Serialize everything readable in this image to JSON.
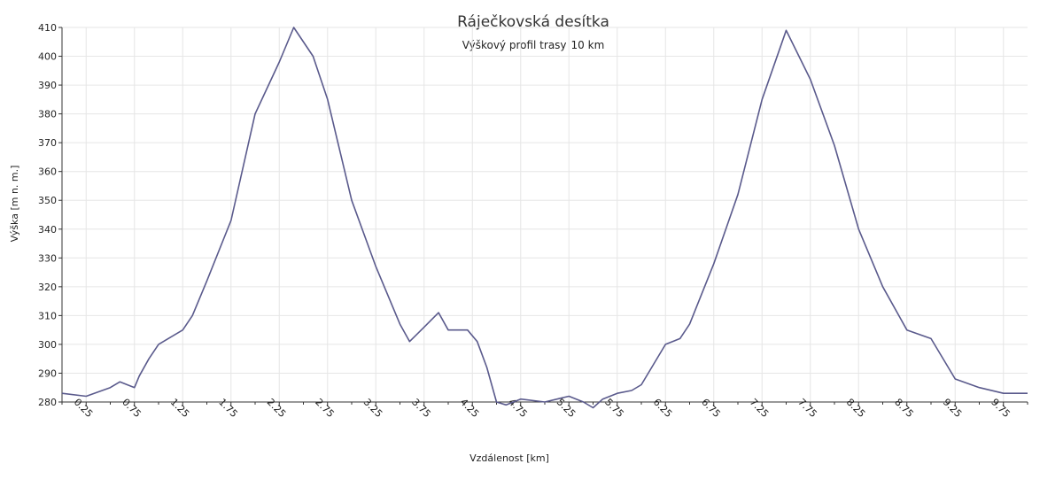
{
  "chart_data": {
    "type": "line",
    "title": "Ráječkovská desítka",
    "subtitle": "Výškový profil trasy",
    "subtitle_value": "10 km",
    "xlabel": "Vzdálenost [km]",
    "ylabel": "Výška [m n. m.]",
    "xlim": [
      0,
      10
    ],
    "ylim": [
      280,
      410
    ],
    "grid": true,
    "legend": "none",
    "x_ticks": [
      "0.25",
      "0.75",
      "1.25",
      "1.75",
      "2.25",
      "2.75",
      "3.25",
      "3.75",
      "4.25",
      "4.75",
      "5.25",
      "5.75",
      "6.25",
      "6.75",
      "7.25",
      "7.75",
      "8.25",
      "8.75",
      "9.25",
      "9.75"
    ],
    "y_ticks": [
      "410",
      "400",
      "390",
      "380",
      "370",
      "360",
      "350",
      "340",
      "330",
      "320",
      "310",
      "300",
      "290",
      "280"
    ],
    "line_color": "#5a5a8c",
    "series": [
      {
        "x": [
          0.0,
          0.25,
          0.5,
          0.6,
          0.75,
          0.8,
          0.9,
          1.0,
          1.1,
          1.25,
          1.35,
          1.5,
          1.75,
          2.0,
          2.25,
          2.4,
          2.6,
          2.75,
          3.0,
          3.25,
          3.5,
          3.6,
          3.75,
          3.9,
          4.0,
          4.2,
          4.3,
          4.4,
          4.5,
          4.6,
          4.75,
          5.0,
          5.25,
          5.4,
          5.5,
          5.6,
          5.75,
          5.9,
          6.0,
          6.25,
          6.4,
          6.5,
          6.75,
          7.0,
          7.25,
          7.5,
          7.75,
          8.0,
          8.25,
          8.5,
          8.75,
          9.0,
          9.25,
          9.5,
          9.75,
          10.0
        ],
        "values": [
          283,
          282,
          285,
          287,
          285,
          289,
          295,
          300,
          302,
          305,
          310,
          322,
          343,
          380,
          398,
          410,
          400,
          385,
          350,
          327,
          307,
          301,
          306,
          311,
          305,
          305,
          301,
          292,
          280,
          279,
          281,
          280,
          282,
          280,
          278,
          281,
          283,
          284,
          286,
          300,
          302,
          307,
          328,
          352,
          385,
          409,
          392,
          369,
          340,
          320,
          305,
          302,
          288,
          285,
          283,
          283
        ]
      }
    ]
  }
}
